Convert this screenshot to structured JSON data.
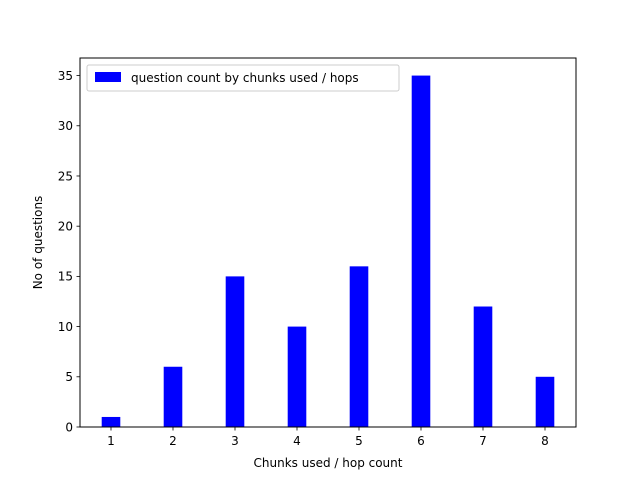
{
  "chart_data": {
    "type": "bar",
    "categories": [
      "1",
      "2",
      "3",
      "4",
      "5",
      "6",
      "7",
      "8"
    ],
    "x": [
      1,
      2,
      3,
      4,
      5,
      6,
      7,
      8
    ],
    "series": [
      {
        "name": "question count by chunks used / hops",
        "values": [
          1,
          6,
          15,
          10,
          16,
          35,
          12,
          5
        ],
        "color": "#0000ff"
      }
    ],
    "xlabel": "Chunks used / hop count",
    "ylabel": "No of questions",
    "xlim": [
      0.5,
      8.5
    ],
    "ylim": [
      0,
      36.75
    ],
    "yticks": [
      0,
      5,
      10,
      15,
      20,
      25,
      30,
      35
    ],
    "grid": false,
    "legend_position": "top-left"
  }
}
